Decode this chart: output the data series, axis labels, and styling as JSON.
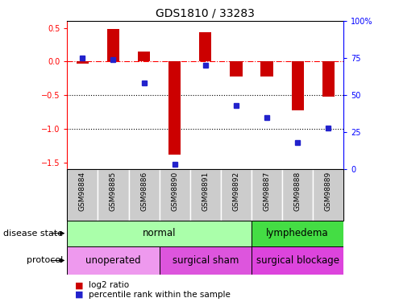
{
  "title": "GDS1810 / 33283",
  "samples": [
    "GSM98884",
    "GSM98885",
    "GSM98886",
    "GSM98890",
    "GSM98891",
    "GSM98892",
    "GSM98887",
    "GSM98888",
    "GSM98889"
  ],
  "log2_ratio": [
    -0.03,
    0.48,
    0.15,
    -1.38,
    0.44,
    -0.22,
    -0.22,
    -0.72,
    -0.52
  ],
  "percentile_rank": [
    75,
    74,
    58,
    3,
    70,
    43,
    35,
    18,
    28
  ],
  "ylim_left": [
    -1.6,
    0.6
  ],
  "ylim_right": [
    0,
    100
  ],
  "dotted_lines": [
    -0.5,
    -1.0
  ],
  "bar_color": "#cc0000",
  "dot_color": "#2222cc",
  "disease_state": [
    {
      "label": "normal",
      "start": 0,
      "end": 6,
      "color": "#aaffaa"
    },
    {
      "label": "lymphedema",
      "start": 6,
      "end": 9,
      "color": "#44dd44"
    }
  ],
  "protocol": [
    {
      "label": "unoperated",
      "start": 0,
      "end": 3,
      "color": "#ee99ee"
    },
    {
      "label": "surgical sham",
      "start": 3,
      "end": 6,
      "color": "#dd55dd"
    },
    {
      "label": "surgical blockage",
      "start": 6,
      "end": 9,
      "color": "#dd44dd"
    }
  ],
  "legend_log2": "log2 ratio",
  "legend_pct": "percentile rank within the sample",
  "yticks_left": [
    -1.5,
    -1.0,
    -0.5,
    0.0,
    0.5
  ],
  "yticks_right": [
    0,
    25,
    50,
    75,
    100
  ],
  "bar_width": 0.4
}
